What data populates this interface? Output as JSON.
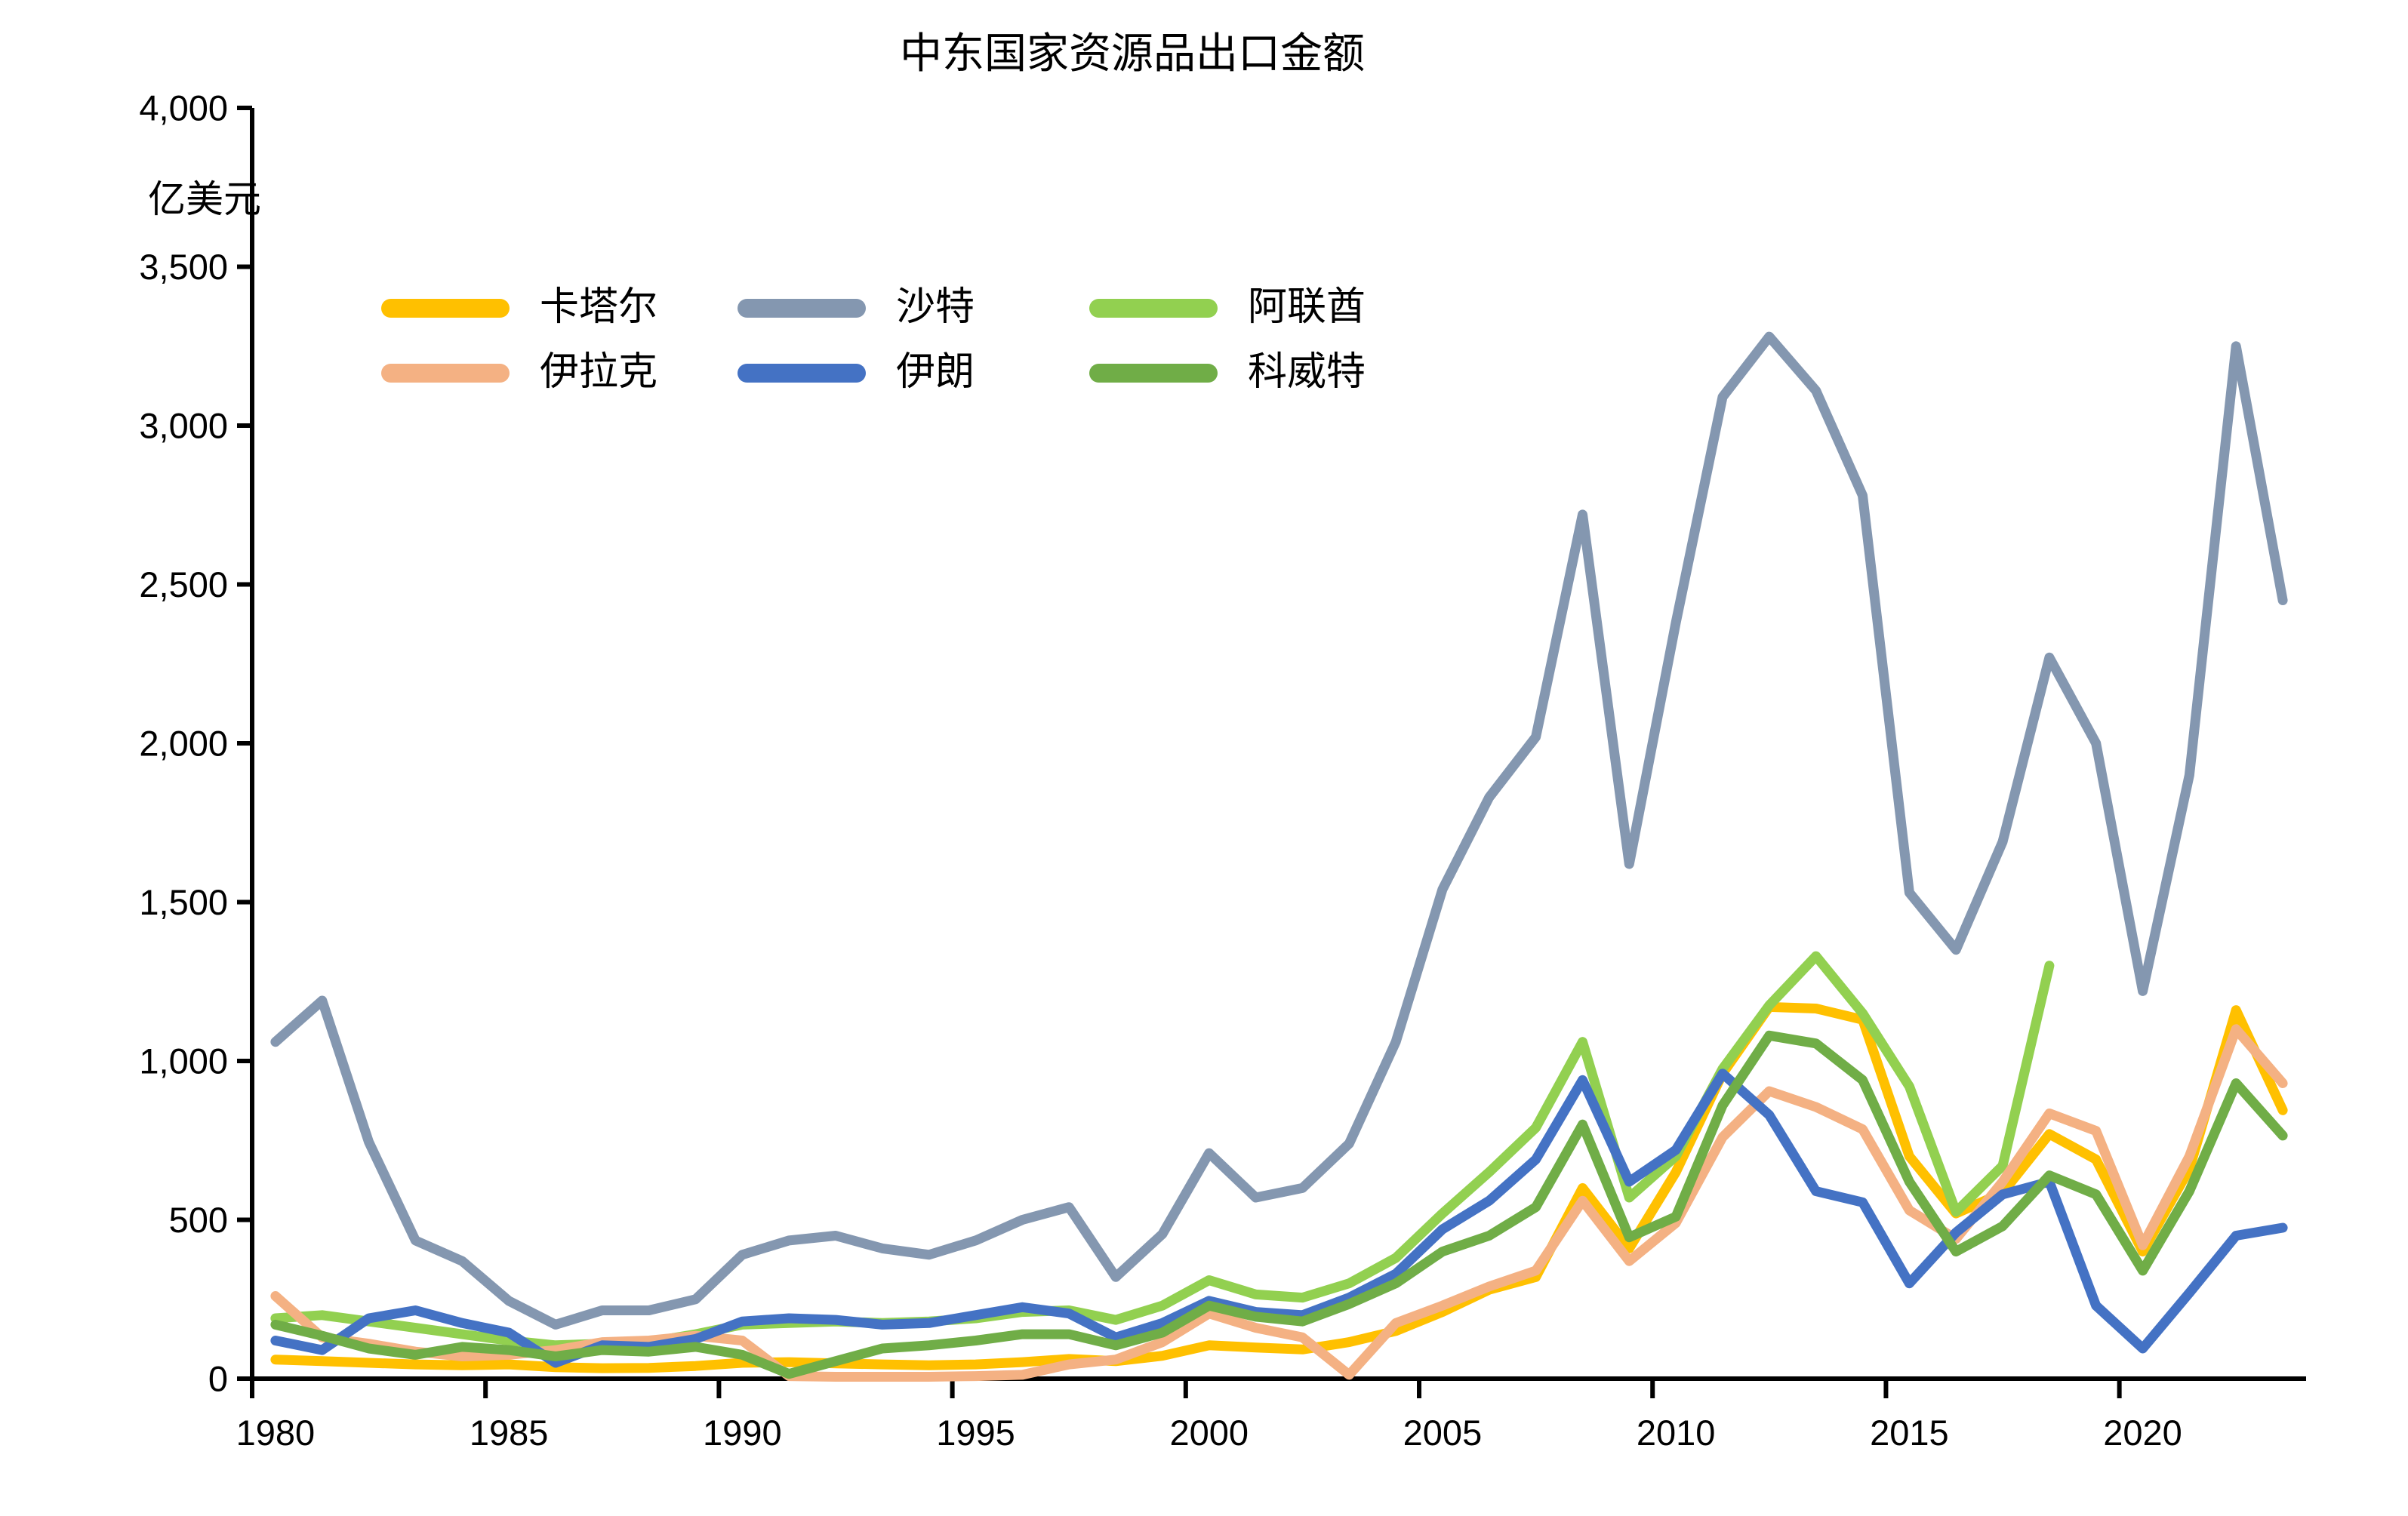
{
  "chart_data": {
    "type": "line",
    "title": "中东国家资源品出口金额",
    "unit_label": "亿美元",
    "x_years": [
      1980,
      1981,
      1982,
      1983,
      1984,
      1985,
      1986,
      1987,
      1988,
      1989,
      1990,
      1991,
      1992,
      1993,
      1994,
      1995,
      1996,
      1997,
      1998,
      1999,
      2000,
      2001,
      2002,
      2003,
      2004,
      2005,
      2006,
      2007,
      2008,
      2009,
      2010,
      2011,
      2012,
      2013,
      2014,
      2015,
      2016,
      2017,
      2018,
      2019,
      2020,
      2021,
      2022,
      2023
    ],
    "x_axis_tick_labels": [
      "1980",
      "1985",
      "1990",
      "1995",
      "2000",
      "2005",
      "2010",
      "2015",
      "2020"
    ],
    "x_tick_step": 5,
    "y_axis": {
      "min": 0,
      "max": 4000,
      "step": 500,
      "tick_labels": [
        "0",
        "500",
        "1,000",
        "1,500",
        "2,000",
        "2,500",
        "3,000",
        "3,500",
        "4,000"
      ]
    },
    "grid": false,
    "legend": {
      "rows": 2,
      "columns": 3,
      "order": "row-major"
    },
    "series": [
      {
        "name": "卡塔尔",
        "slug": "qatar",
        "color": "#FFC000",
        "values": [
          60,
          55,
          50,
          45,
          42,
          45,
          36,
          33,
          34,
          40,
          50,
          52,
          48,
          45,
          42,
          45,
          52,
          62,
          55,
          72,
          105,
          98,
          92,
          115,
          150,
          210,
          280,
          320,
          600,
          410,
          650,
          960,
          1170,
          1165,
          1130,
          700,
          520,
          585,
          770,
          690,
          400,
          660,
          1160,
          845
        ]
      },
      {
        "name": "沙特",
        "slug": "saudi",
        "color": "#8497B0",
        "values": [
          1060,
          1190,
          745,
          435,
          370,
          245,
          170,
          215,
          215,
          250,
          390,
          435,
          450,
          410,
          390,
          435,
          500,
          540,
          320,
          455,
          710,
          570,
          600,
          740,
          1060,
          1540,
          1830,
          2020,
          2720,
          1620,
          2380,
          3090,
          3280,
          3110,
          2780,
          1530,
          1350,
          1690,
          2270,
          2000,
          1220,
          1900,
          3250,
          2450
        ]
      },
      {
        "name": "阿联酋",
        "slug": "uae",
        "color": "#92D050",
        "values": [
          190,
          200,
          180,
          160,
          140,
          120,
          105,
          110,
          115,
          140,
          170,
          175,
          180,
          175,
          180,
          190,
          210,
          215,
          185,
          230,
          310,
          265,
          255,
          300,
          380,
          520,
          650,
          790,
          1060,
          570,
          700,
          975,
          1175,
          1330,
          1150,
          920,
          525,
          670,
          1300,
          null,
          null,
          null,
          null,
          null
        ]
      },
      {
        "name": "伊拉克",
        "slug": "iraq",
        "color": "#F4B183",
        "values": [
          260,
          130,
          110,
          85,
          70,
          75,
          90,
          115,
          120,
          135,
          120,
          8,
          6,
          6,
          6,
          8,
          12,
          45,
          60,
          115,
          205,
          160,
          130,
          12,
          175,
          230,
          290,
          340,
          560,
          370,
          490,
          760,
          905,
          855,
          785,
          530,
          440,
          620,
          835,
          780,
          420,
          700,
          1100,
          930
        ]
      },
      {
        "name": "伊朗",
        "slug": "iran",
        "color": "#4472C4",
        "values": [
          120,
          90,
          190,
          215,
          175,
          145,
          50,
          105,
          100,
          125,
          180,
          190,
          185,
          170,
          175,
          200,
          225,
          205,
          130,
          175,
          245,
          210,
          200,
          255,
          330,
          470,
          560,
          690,
          940,
          620,
          720,
          960,
          830,
          590,
          555,
          300,
          460,
          580,
          620,
          230,
          95,
          270,
          450,
          475
        ]
      },
      {
        "name": "科威特",
        "slug": "kuwait",
        "color": "#70AD47",
        "values": [
          170,
          135,
          95,
          75,
          100,
          90,
          70,
          90,
          85,
          100,
          75,
          15,
          55,
          95,
          105,
          120,
          140,
          140,
          105,
          145,
          230,
          195,
          180,
          235,
          300,
          400,
          450,
          540,
          800,
          445,
          510,
          860,
          1080,
          1055,
          940,
          620,
          400,
          480,
          640,
          580,
          340,
          590,
          930,
          765
        ]
      }
    ]
  }
}
